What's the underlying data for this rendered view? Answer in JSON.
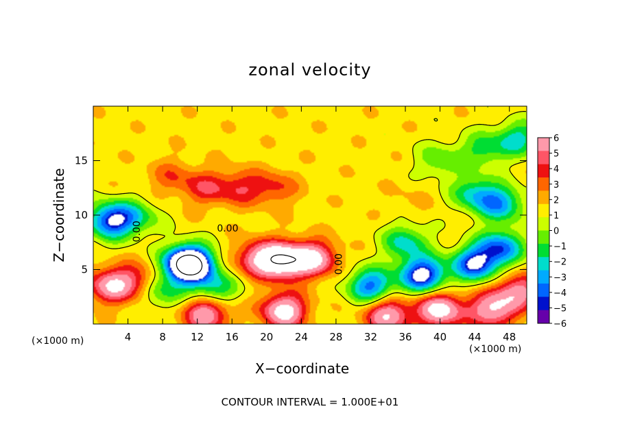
{
  "chart_data": {
    "type": "heatmap",
    "title": "zonal velocity",
    "xlabel": "X−coordinate",
    "ylabel": "Z−coordinate",
    "x_units": "(×1000 m)",
    "y_units": "(×1000 m)",
    "xlim": [
      0,
      50
    ],
    "ylim": [
      0,
      20
    ],
    "x_ticks": [
      4,
      8,
      12,
      16,
      20,
      24,
      28,
      32,
      36,
      40,
      44,
      48
    ],
    "y_ticks": [
      5,
      10,
      15
    ],
    "colorbar": {
      "ticks": [
        6,
        5,
        4,
        3,
        2,
        1,
        0,
        -1,
        -2,
        -3,
        -4,
        -5,
        -6
      ],
      "tick_labels": [
        "6",
        "5",
        "4",
        "3",
        "2",
        "1",
        "0",
        "−1",
        "−2",
        "−3",
        "−4",
        "−5",
        "−6"
      ],
      "range": [
        -6,
        6
      ],
      "colors": [
        "#ff99aa",
        "#ff5566",
        "#ee1111",
        "#ff6600",
        "#ffaa00",
        "#ffee00",
        "#ccff00",
        "#66ee00",
        "#00dd33",
        "#00ddcc",
        "#00aaff",
        "#0066ff",
        "#0011cc",
        "#6600aa"
      ]
    },
    "contour_labels": [
      "0.00",
      "0.00",
      "0.00",
      "0.00"
    ],
    "footer": "CONTOUR INTERVAL = 1.000E+01",
    "field_sources": [
      {
        "x": 2,
        "z": 3.5,
        "v": 5.5
      },
      {
        "x": 5,
        "z": 4,
        "v": 3
      },
      {
        "x": 2,
        "z": 9.5,
        "v": -7
      },
      {
        "x": 5,
        "z": 9.8,
        "v": -3
      },
      {
        "x": 11,
        "z": 5.5,
        "v": -8
      },
      {
        "x": 11,
        "z": 5.5,
        "v": -6
      },
      {
        "x": 8,
        "z": 3,
        "v": -3
      },
      {
        "x": 14,
        "z": 3.2,
        "v": -4
      },
      {
        "x": 22,
        "z": 5.8,
        "v": 8
      },
      {
        "x": 25.5,
        "z": 6,
        "v": 6
      },
      {
        "x": 19,
        "z": 6,
        "v": 5
      },
      {
        "x": 13,
        "z": 12.5,
        "v": 3
      },
      {
        "x": 17,
        "z": 12.5,
        "v": 3
      },
      {
        "x": 21,
        "z": 12.5,
        "v": 2.5
      },
      {
        "x": 9,
        "z": 13.5,
        "v": 2
      },
      {
        "x": 22,
        "z": 1.2,
        "v": 7
      },
      {
        "x": 13,
        "z": 1,
        "v": 6
      },
      {
        "x": 38,
        "z": 4.5,
        "v": -8
      },
      {
        "x": 44,
        "z": 5.5,
        "v": -7
      },
      {
        "x": 32,
        "z": 3.5,
        "v": -6
      },
      {
        "x": 47,
        "z": 7,
        "v": -6
      },
      {
        "x": 36,
        "z": 7.5,
        "v": -4
      },
      {
        "x": 47,
        "z": 11,
        "v": -5
      },
      {
        "x": 44,
        "z": 12,
        "v": -4
      },
      {
        "x": 49,
        "z": 17,
        "v": -4
      },
      {
        "x": 45,
        "z": 16,
        "v": -3
      },
      {
        "x": 40,
        "z": 15,
        "v": -2.5
      },
      {
        "x": 40,
        "z": 1.3,
        "v": 7
      },
      {
        "x": 46,
        "z": 1.3,
        "v": 6
      },
      {
        "x": 34,
        "z": 0.8,
        "v": 6
      },
      {
        "x": 49,
        "z": 3,
        "v": 5
      },
      {
        "x": 36.5,
        "z": 11.5,
        "v": 0.5
      }
    ],
    "field_base": 0.6
  }
}
